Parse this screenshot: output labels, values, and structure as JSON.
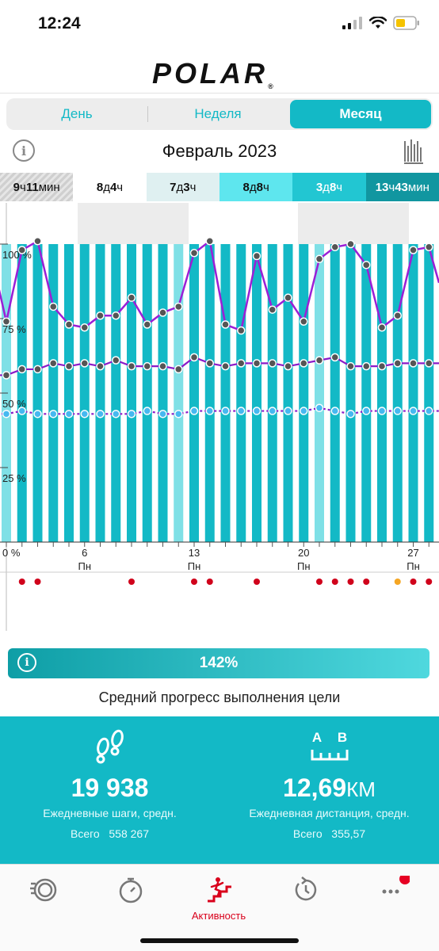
{
  "status": {
    "time": "12:24"
  },
  "brand": {
    "logo": "POLAR",
    "reg": "®"
  },
  "tabs": [
    {
      "label": "День",
      "active": false
    },
    {
      "label": "Неделя",
      "active": false
    },
    {
      "label": "Месяц",
      "active": true
    }
  ],
  "period": {
    "title": "Февраль 2023",
    "info_icon": "info-icon",
    "zones_icon": "zones-chart-icon"
  },
  "zones": [
    {
      "bold1": "9",
      "u1": "ч",
      "bold2": "11",
      "u2": "мин",
      "color": "#d8d8d8"
    },
    {
      "bold1": "8",
      "u1": "д",
      "bold2": "4",
      "u2": "ч",
      "color": "#ffffff"
    },
    {
      "bold1": "7",
      "u1": "д",
      "bold2": "3",
      "u2": "ч",
      "color": "#dff0f1"
    },
    {
      "bold1": "8",
      "u1": "д",
      "bold2": "8",
      "u2": "ч",
      "color": "#5ee6ee"
    },
    {
      "bold1": "3",
      "u1": "д",
      "bold2": "8",
      "u2": "ч",
      "color": "#22c6d2"
    },
    {
      "bold1": "13",
      "u1": "ч",
      "bold2": "43",
      "u2": "мин",
      "color": "#1196a0"
    }
  ],
  "chart_data": {
    "type": "bar",
    "title": "",
    "y_tick_labels": [
      "100 %",
      "75 %",
      "50 %",
      "25 %",
      "0 %"
    ],
    "x_ticks": [
      {
        "day": 6,
        "label": "6",
        "weekday": "Пн"
      },
      {
        "day": 13,
        "label": "13",
        "weekday": "Пн"
      },
      {
        "day": 20,
        "label": "20",
        "weekday": "Пн"
      },
      {
        "day": 27,
        "label": "27",
        "weekday": "Пн"
      }
    ],
    "days": [
      1,
      2,
      3,
      4,
      5,
      6,
      7,
      8,
      9,
      10,
      11,
      12,
      13,
      14,
      15,
      16,
      17,
      18,
      19,
      20,
      21,
      22,
      23,
      24,
      25,
      26,
      27,
      28
    ],
    "bar_values": [
      100,
      100,
      100,
      100,
      100,
      100,
      100,
      100,
      100,
      100,
      100,
      100,
      100,
      100,
      100,
      100,
      100,
      100,
      100,
      100,
      100,
      100,
      100,
      100,
      100,
      100,
      100,
      100
    ],
    "series": [
      {
        "name": "",
        "color": "#9b1fd6",
        "values": [
          74,
          98,
          101,
          79,
          73,
          72,
          76,
          76,
          82,
          73,
          77,
          79,
          97,
          101,
          73,
          71,
          96,
          78,
          82,
          74,
          95,
          99,
          100,
          93,
          72,
          76,
          98,
          99
        ]
      },
      {
        "name": "",
        "color": "#8a1ac8",
        "values": [
          56,
          58,
          58,
          60,
          59,
          60,
          59,
          61,
          59,
          59,
          59,
          58,
          62,
          60,
          59,
          60,
          60,
          60,
          59,
          60,
          61,
          62,
          59,
          59,
          59,
          60,
          60,
          60
        ]
      },
      {
        "name": "",
        "color": "#8a1ac8",
        "values": [
          43,
          44,
          43,
          43,
          43,
          43,
          43,
          43,
          43,
          44,
          43,
          43,
          44,
          44,
          44,
          44,
          44,
          44,
          44,
          44,
          45,
          44,
          43,
          44,
          44,
          44,
          44,
          44
        ]
      }
    ],
    "event_markers": [
      {
        "day": 2,
        "color": "#d0021b"
      },
      {
        "day": 3,
        "color": "#d0021b"
      },
      {
        "day": 9,
        "color": "#d0021b"
      },
      {
        "day": 13,
        "color": "#d0021b"
      },
      {
        "day": 14,
        "color": "#d0021b"
      },
      {
        "day": 17,
        "color": "#d0021b"
      },
      {
        "day": 21,
        "color": "#d0021b"
      },
      {
        "day": 22,
        "color": "#d0021b"
      },
      {
        "day": 23,
        "color": "#d0021b"
      },
      {
        "day": 24,
        "color": "#d0021b"
      },
      {
        "day": 26,
        "color": "#f5a623"
      },
      {
        "day": 27,
        "color": "#d0021b"
      },
      {
        "day": 28,
        "color": "#d0021b"
      }
    ],
    "bar_color": "#13b9c6",
    "bar_color_light": "#7fe0e6",
    "grid": true
  },
  "goal": {
    "value": "142%",
    "caption": "Средний прогресс выполнения цели",
    "info_icon": "info-icon"
  },
  "stats": {
    "steps": {
      "icon": "footsteps-icon",
      "value": "19 938",
      "label": "Ежедневные шаги, средн.",
      "total_label": "Всего",
      "total_value": "558 267"
    },
    "distance": {
      "icon": "distance-ab-icon",
      "value": "12,69",
      "unit": "КМ",
      "label": "Ежедневная дистанция, средн.",
      "total_label": "Всего",
      "total_value": "355,57",
      "icon_a": "A",
      "icon_b": "B"
    }
  },
  "tabbar": [
    {
      "name": "tab-activity-rings",
      "icon": "rings-icon"
    },
    {
      "name": "tab-stopwatch",
      "icon": "stopwatch-icon"
    },
    {
      "name": "tab-activity",
      "icon": "stairs-runner-icon",
      "label": "Активность"
    },
    {
      "name": "tab-recovery",
      "icon": "refresh-icon"
    },
    {
      "name": "tab-more",
      "icon": "more-icon"
    }
  ]
}
